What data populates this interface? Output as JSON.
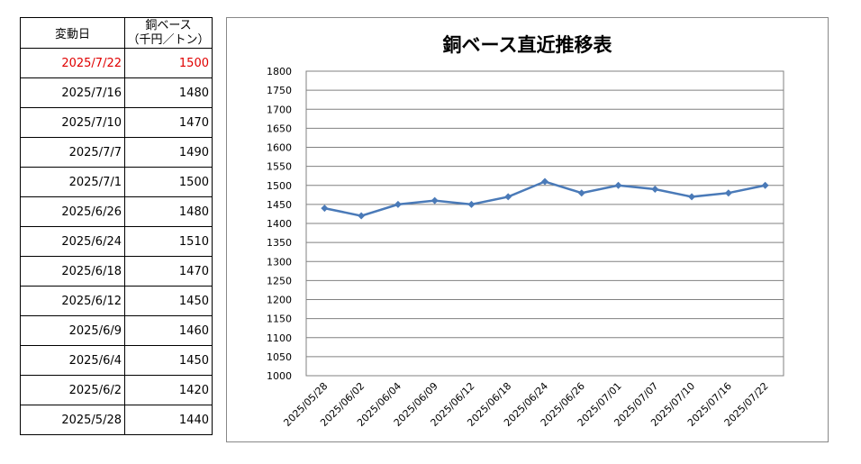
{
  "table": {
    "header_date": "変動日",
    "header_price_line1": "銅ベース",
    "header_price_line2": "（千円／トン）",
    "rows": [
      {
        "date": "2025/7/22",
        "price": "1500"
      },
      {
        "date": "2025/7/16",
        "price": "1480"
      },
      {
        "date": "2025/7/10",
        "price": "1470"
      },
      {
        "date": "2025/7/7",
        "price": "1490"
      },
      {
        "date": "2025/7/1",
        "price": "1500"
      },
      {
        "date": "2025/6/26",
        "price": "1480"
      },
      {
        "date": "2025/6/24",
        "price": "1510"
      },
      {
        "date": "2025/6/18",
        "price": "1470"
      },
      {
        "date": "2025/6/12",
        "price": "1450"
      },
      {
        "date": "2025/6/9",
        "price": "1460"
      },
      {
        "date": "2025/6/4",
        "price": "1450"
      },
      {
        "date": "2025/6/2",
        "price": "1420"
      },
      {
        "date": "2025/5/28",
        "price": "1440"
      }
    ],
    "latest_color": "#e00000"
  },
  "chart_data": {
    "type": "line",
    "title": "銅ベース直近推移表",
    "categories": [
      "2025/05/28",
      "2025/06/02",
      "2025/06/04",
      "2025/06/09",
      "2025/06/12",
      "2025/06/18",
      "2025/06/24",
      "2025/06/26",
      "2025/07/01",
      "2025/07/07",
      "2025/07/10",
      "2025/07/16",
      "2025/07/22"
    ],
    "series": [
      {
        "values": [
          1440,
          1420,
          1450,
          1460,
          1450,
          1470,
          1510,
          1480,
          1500,
          1490,
          1470,
          1480,
          1500
        ]
      }
    ],
    "ylim": [
      1000,
      1800
    ],
    "ystep": 50,
    "grid": true,
    "line_color": "#4a7ab8",
    "xlabel": "",
    "ylabel": ""
  }
}
